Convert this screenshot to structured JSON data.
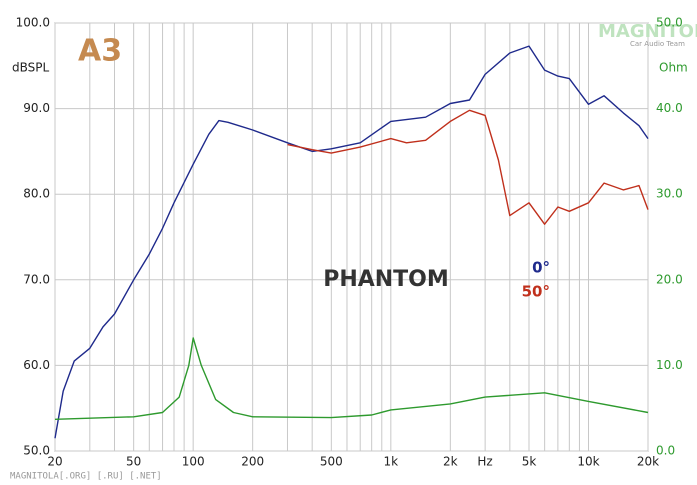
{
  "chart_data": {
    "type": "line",
    "y_label": "dBSPL",
    "y2_label": "Ohm",
    "x_label": "Hz",
    "annotation": "PHANTOM",
    "logo": "A3",
    "watermark": "MAGNITOLA",
    "watermark_sub": "Car Audio Team",
    "footer": "MAGNITOLA[.ORG] [.RU] [.NET]",
    "xscale": "log",
    "xlim": [
      20,
      20000
    ],
    "xticks": [
      20,
      50,
      100,
      200,
      500,
      {
        "value": 1000,
        "label": "1k"
      },
      {
        "value": 2000,
        "label": "2k"
      },
      {
        "value": 5000,
        "label": "5k"
      },
      {
        "value": 10000,
        "label": "10k"
      },
      {
        "value": 20000,
        "label": "20k"
      }
    ],
    "xgrid": [
      30,
      40,
      60,
      70,
      80,
      90,
      300,
      400,
      600,
      700,
      800,
      900,
      3000,
      4000,
      6000,
      7000,
      8000,
      9000
    ],
    "ylim": [
      50,
      100
    ],
    "yticks": [
      {
        "value": 50,
        "label": "50.0"
      },
      {
        "value": 60,
        "label": "60.0"
      },
      {
        "value": 70,
        "label": "70.0"
      },
      {
        "value": 80,
        "label": "80.0"
      },
      {
        "value": 90,
        "label": "90.0"
      },
      {
        "value": 100,
        "label": "100.0"
      }
    ],
    "y2lim": [
      0,
      50
    ],
    "y2ticks": [
      {
        "value": 0,
        "label": "0.0"
      },
      {
        "value": 10,
        "label": "10.0"
      },
      {
        "value": 20,
        "label": "20.0"
      },
      {
        "value": 30,
        "label": "30.0"
      },
      {
        "value": 40,
        "label": "40.0"
      },
      {
        "value": 50,
        "label": "50.0"
      }
    ],
    "grid": true,
    "series": [
      {
        "name": "0°",
        "color": "#1f2a8c",
        "x": [
          20,
          22,
          25,
          30,
          35,
          40,
          50,
          60,
          70,
          80,
          100,
          120,
          135,
          150,
          200,
          300,
          400,
          500,
          700,
          1000,
          1500,
          2000,
          2500,
          3000,
          4000,
          5000,
          6000,
          7000,
          8000,
          10000,
          12000,
          15000,
          18000,
          20000
        ],
        "values": [
          51.5,
          57,
          60.5,
          62,
          64.5,
          66,
          70,
          73,
          76,
          79,
          83.5,
          87,
          88.6,
          88.4,
          87.5,
          86,
          85,
          85.3,
          86,
          88.5,
          89,
          90.6,
          91,
          94,
          96.5,
          97.3,
          94.5,
          93.8,
          93.5,
          90.5,
          91.5,
          89.5,
          88,
          86.5
        ]
      },
      {
        "name": "50°",
        "color": "#c0301c",
        "x": [
          300,
          400,
          500,
          700,
          1000,
          1200,
          1500,
          2000,
          2500,
          3000,
          3500,
          4000,
          5000,
          6000,
          7000,
          8000,
          10000,
          12000,
          15000,
          18000,
          20000
        ],
        "values": [
          85.8,
          85.2,
          84.8,
          85.5,
          86.5,
          86,
          86.3,
          88.5,
          89.8,
          89.2,
          84,
          77.5,
          79,
          76.5,
          78.5,
          78,
          79,
          81.3,
          80.5,
          81,
          78.2
        ]
      },
      {
        "color": "#2e9a2e",
        "axis": "y2",
        "x": [
          20,
          50,
          70,
          85,
          95,
          100,
          110,
          130,
          160,
          200,
          500,
          800,
          1000,
          2000,
          3000,
          6000,
          10000,
          20000
        ],
        "values": [
          3.7,
          4,
          4.5,
          6.3,
          10,
          13.2,
          10,
          6,
          4.5,
          4,
          3.9,
          4.2,
          4.8,
          5.5,
          6.3,
          6.8,
          5.8,
          4.5
        ]
      }
    ]
  }
}
